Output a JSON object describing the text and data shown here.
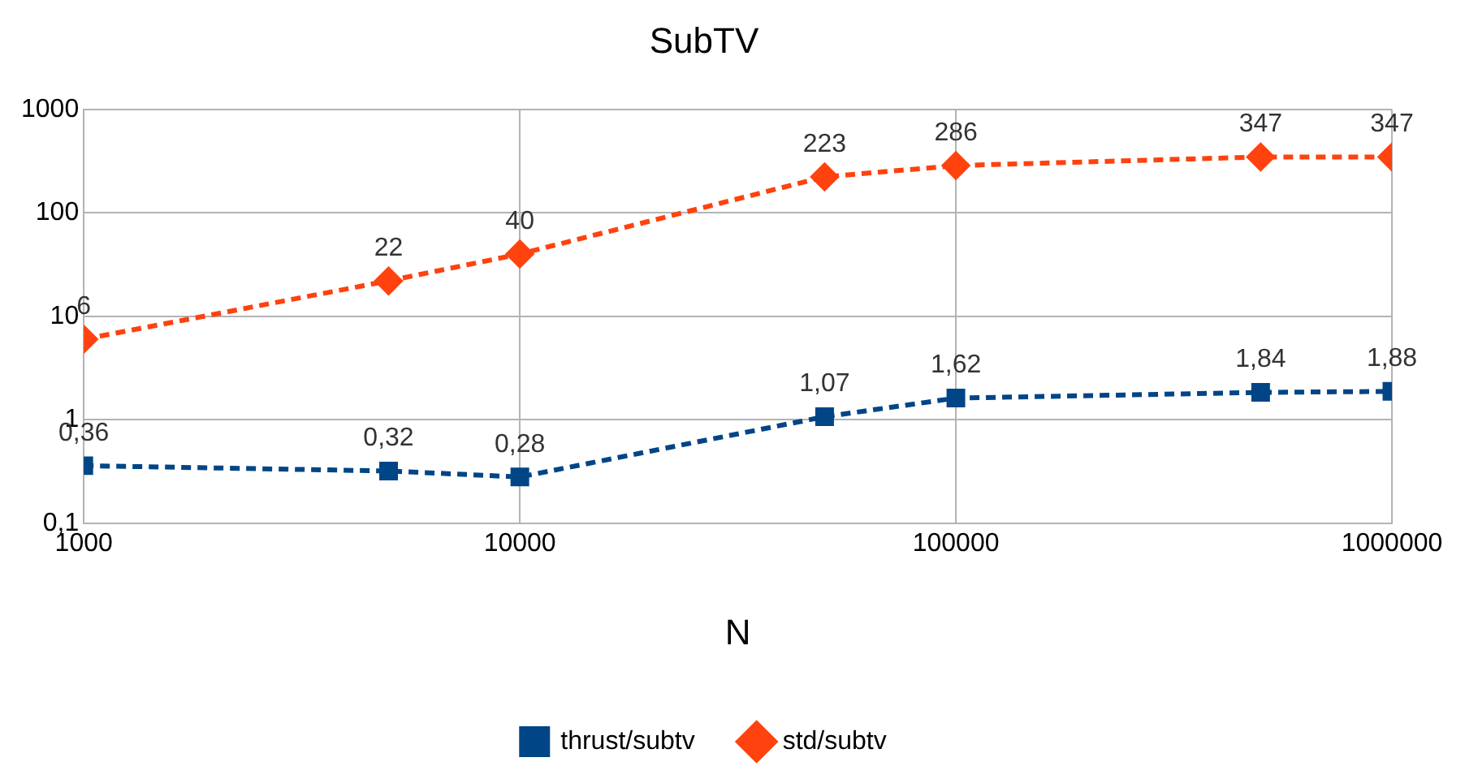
{
  "chart_data": {
    "type": "line",
    "title": "SubTV",
    "xlabel": "N",
    "log": "xy",
    "grid": true,
    "legend": "bottom",
    "line_style": "dashed",
    "x": [
      1000,
      5000,
      10000,
      50000,
      100000,
      500000,
      1000000
    ],
    "xlim": [
      1000,
      1000000
    ],
    "xticks": [
      1000,
      10000,
      100000,
      1000000
    ],
    "ylim": [
      0.1,
      1000
    ],
    "yticks": [
      {
        "value": 0.1,
        "label": "0,1"
      },
      1,
      10,
      100,
      1000
    ],
    "series": [
      {
        "name": "thrust/subtv",
        "color": "#004586",
        "marker": "square",
        "values": [
          0.36,
          0.32,
          0.28,
          1.07,
          1.62,
          1.84,
          1.88
        ],
        "value_labels": [
          "0,36",
          "0,32",
          "0,28",
          "1,07",
          "1,62",
          "1,84",
          "1,88"
        ]
      },
      {
        "name": "std/subtv",
        "color": "#ff420e",
        "marker": "diamond",
        "values": [
          6,
          22,
          40,
          223,
          286,
          347,
          347
        ],
        "value_labels": [
          "6",
          "22",
          "40",
          "223",
          "286",
          "347",
          "347"
        ]
      }
    ]
  }
}
